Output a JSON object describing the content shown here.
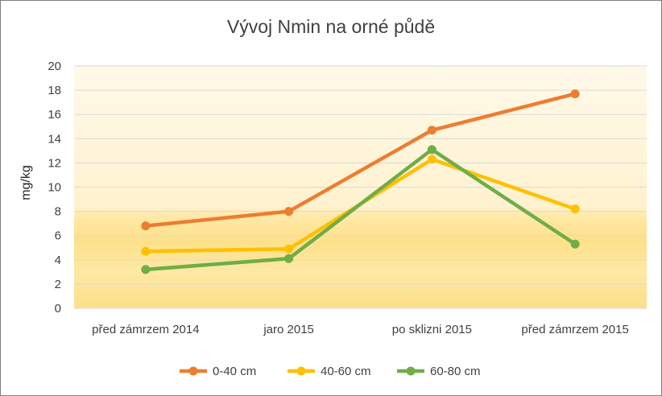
{
  "chart_data": {
    "type": "line",
    "title": "Vývoj Nmin na orné půdě",
    "xlabel": "",
    "ylabel": "mg/kg",
    "categories": [
      "před zámrzem 2014",
      "jaro 2015",
      "po sklizni 2015",
      "před zámrzem 2015"
    ],
    "ylim": [
      0,
      20
    ],
    "yticks": [
      0,
      2,
      4,
      6,
      8,
      10,
      12,
      14,
      16,
      18,
      20
    ],
    "grid": true,
    "legend": "bottom",
    "series": [
      {
        "name": "0-40 cm",
        "color": "#ed7d31",
        "values": [
          6.8,
          8.0,
          14.7,
          17.7
        ]
      },
      {
        "name": "40-60 cm",
        "color": "#ffc000",
        "values": [
          4.7,
          4.9,
          12.3,
          8.2
        ]
      },
      {
        "name": "60-80 cm",
        "color": "#70ad47",
        "values": [
          3.2,
          4.1,
          13.1,
          5.3
        ]
      }
    ]
  }
}
